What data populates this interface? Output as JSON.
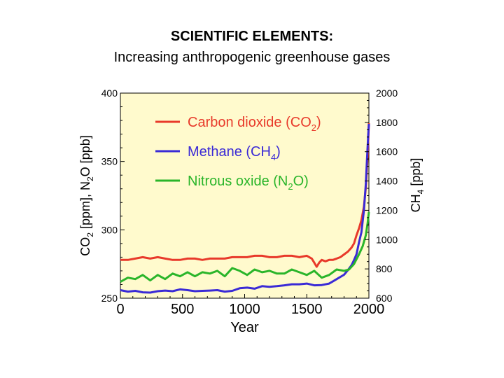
{
  "slide": {
    "title": "SCIENTIFIC ELEMENTS:",
    "subtitle": "Increasing anthropogenic greenhouse gases"
  },
  "chart_data": {
    "type": "line",
    "xlabel": "Year",
    "ylabel_left": "CO2 [ppm], N2O [ppb]",
    "ylabel_right": "CH4 [ppb]",
    "xlim": [
      0,
      2000
    ],
    "ylim_left": [
      250,
      400
    ],
    "ylim_right": [
      600,
      2000
    ],
    "x_ticks": [
      "0",
      "500",
      "1000",
      "1500",
      "2000"
    ],
    "y_ticks_left": [
      "250",
      "300",
      "350",
      "400"
    ],
    "y_ticks_right": [
      "600",
      "800",
      "1000",
      "1200",
      "1400",
      "1600",
      "1800",
      "2000"
    ],
    "background": "#fffacd",
    "legend_position": "top-left (inside)",
    "series": [
      {
        "name": "Carbon dioxide (CO2)",
        "legend_base": "Carbon dioxide (CO",
        "legend_sub": "2",
        "legend_tail": ")",
        "axis": "left",
        "color": "#e8392a",
        "x": [
          0,
          60,
          120,
          180,
          240,
          300,
          360,
          420,
          480,
          540,
          600,
          660,
          720,
          780,
          840,
          900,
          960,
          1020,
          1080,
          1140,
          1200,
          1260,
          1320,
          1380,
          1440,
          1500,
          1540,
          1560,
          1580,
          1600,
          1620,
          1650,
          1680,
          1710,
          1740,
          1770,
          1800,
          1830,
          1860,
          1880,
          1900,
          1920,
          1940,
          1960,
          1975,
          1990,
          2000
        ],
        "values": [
          278,
          278,
          279,
          280,
          279,
          280,
          279,
          278,
          278,
          279,
          279,
          278,
          279,
          279,
          279,
          280,
          280,
          280,
          281,
          281,
          280,
          280,
          281,
          281,
          280,
          281,
          279,
          276,
          273,
          276,
          278,
          277,
          278,
          278,
          279,
          280,
          282,
          284,
          287,
          290,
          296,
          301,
          307,
          317,
          331,
          354,
          378
        ]
      },
      {
        "name": "Methane (CH4)",
        "legend_base": "Methane (CH",
        "legend_sub": "4",
        "legend_tail": ")",
        "axis": "right",
        "color": "#3a2ad6",
        "x": [
          0,
          60,
          120,
          180,
          240,
          300,
          360,
          420,
          480,
          540,
          600,
          660,
          720,
          780,
          840,
          900,
          960,
          1020,
          1080,
          1140,
          1200,
          1260,
          1320,
          1380,
          1440,
          1500,
          1560,
          1620,
          1680,
          1720,
          1760,
          1800,
          1830,
          1860,
          1880,
          1900,
          1920,
          1940,
          1960,
          1975,
          1985,
          1995,
          2000
        ],
        "values": [
          655,
          645,
          650,
          640,
          638,
          648,
          652,
          648,
          660,
          655,
          648,
          650,
          652,
          655,
          645,
          650,
          668,
          672,
          665,
          682,
          678,
          682,
          688,
          695,
          695,
          700,
          688,
          690,
          700,
          720,
          740,
          760,
          790,
          825,
          860,
          900,
          980,
          1050,
          1200,
          1380,
          1550,
          1720,
          1790
        ]
      },
      {
        "name": "Nitrous oxide (N2O)",
        "legend_base": "Nitrous oxide (N",
        "legend_sub": "2",
        "legend_tail": "O)",
        "axis": "left",
        "color": "#2ab52a",
        "x": [
          0,
          60,
          120,
          180,
          240,
          300,
          360,
          420,
          480,
          540,
          600,
          660,
          720,
          780,
          840,
          900,
          960,
          1020,
          1080,
          1140,
          1200,
          1260,
          1320,
          1380,
          1440,
          1500,
          1560,
          1620,
          1680,
          1740,
          1800,
          1840,
          1880,
          1920,
          1950,
          1975,
          1990,
          2000
        ],
        "values": [
          262,
          265,
          264,
          267,
          263,
          267,
          264,
          268,
          266,
          269,
          266,
          269,
          268,
          270,
          266,
          272,
          270,
          267,
          271,
          269,
          270,
          268,
          268,
          271,
          269,
          267,
          270,
          265,
          267,
          271,
          270,
          271,
          275,
          282,
          288,
          296,
          305,
          313
        ]
      }
    ]
  }
}
